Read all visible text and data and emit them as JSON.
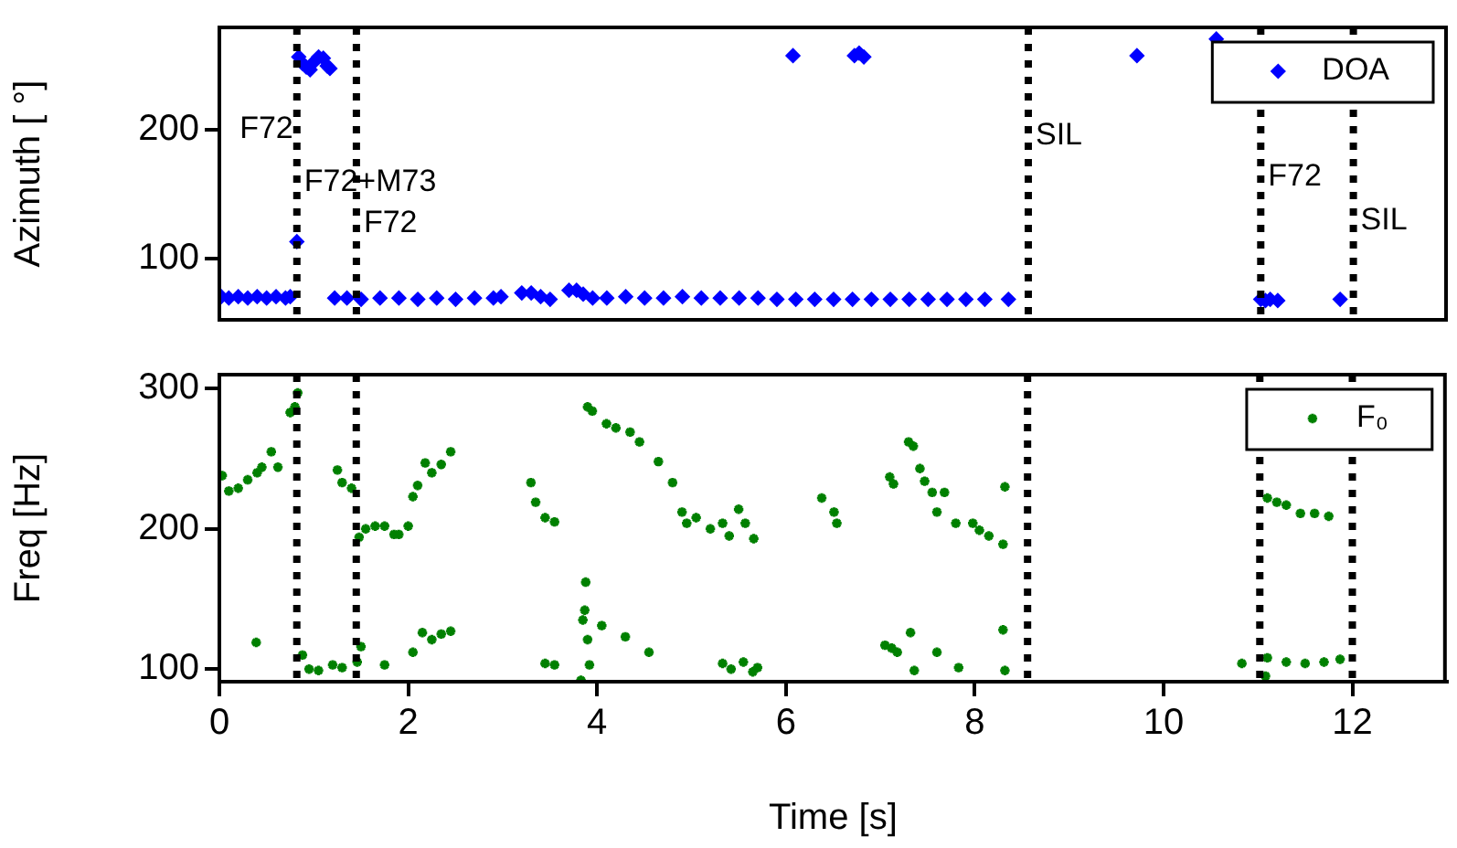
{
  "chart_data": [
    {
      "type": "scatter",
      "ylabel": "Azimuth [ °]",
      "tick_labels": "y",
      "legend": "top right",
      "marker": "diamond",
      "xlim": [
        0,
        13
      ],
      "ylim": [
        52,
        280
      ],
      "yticks": [
        100,
        200
      ],
      "x": [
        0.02,
        0.1,
        0.2,
        0.3,
        0.4,
        0.5,
        0.6,
        0.7,
        0.75,
        0.82,
        0.84,
        0.88,
        0.92,
        0.96,
        1.0,
        1.05,
        1.1,
        1.14,
        1.17,
        1.22,
        1.35,
        1.5,
        1.7,
        1.9,
        2.1,
        2.3,
        2.5,
        2.7,
        2.9,
        2.98,
        3.2,
        3.3,
        3.4,
        3.5,
        3.7,
        3.78,
        3.85,
        3.95,
        4.1,
        4.3,
        4.5,
        4.7,
        4.9,
        5.1,
        5.3,
        5.5,
        5.7,
        5.9,
        6.1,
        6.3,
        6.5,
        6.7,
        6.9,
        7.1,
        7.3,
        7.5,
        7.7,
        7.9,
        8.1,
        8.35,
        6.07,
        6.72,
        6.77,
        6.82,
        9.71,
        10.55,
        11.02,
        11.07,
        11.12,
        11.2,
        11.86
      ],
      "series": [
        {
          "name": "DOA",
          "color": "#0000ff",
          "values": [
            70,
            69,
            70,
            69,
            70,
            69,
            70,
            69,
            70,
            113,
            257,
            252,
            249,
            247,
            253,
            257,
            256,
            250,
            248,
            69,
            69,
            68,
            69,
            69,
            68,
            69,
            68,
            69,
            69,
            70,
            73,
            73,
            70,
            68,
            75,
            75,
            72,
            69,
            69,
            70,
            69,
            69,
            70,
            69,
            69,
            69,
            69,
            68,
            68,
            68,
            68,
            68,
            68,
            68,
            68,
            68,
            68,
            68,
            68,
            68,
            258,
            258,
            260,
            257,
            258,
            271,
            68,
            67,
            68,
            67,
            68
          ]
        }
      ],
      "ref_lines": [
        {
          "axis": "x",
          "value": 0.82,
          "line_style": "dotted",
          "label": "F72+M73"
        },
        {
          "axis": "x",
          "value": 1.45,
          "line_style": "dotted",
          "label": "F72"
        },
        {
          "axis": "x",
          "value": 8.56,
          "line_style": "dotted",
          "label": "SIL"
        },
        {
          "axis": "x",
          "value": 11.02,
          "line_style": "dotted",
          "label": "F72"
        },
        {
          "axis": "x",
          "value": 12.0,
          "line_style": "dotted",
          "label": "SIL"
        }
      ],
      "annotations": [
        "F72"
      ]
    },
    {
      "type": "scatter",
      "xlabel": "Time [s]",
      "ylabel": "Freq [Hz]",
      "legend": "top right",
      "marker": "cross",
      "xlim": [
        0,
        13
      ],
      "xticks": [
        0,
        2,
        4,
        6,
        8,
        10,
        12
      ],
      "ylim": [
        91,
        310
      ],
      "yticks": [
        100,
        200,
        300
      ],
      "x": [
        0.03,
        0.1,
        0.2,
        0.3,
        0.4,
        0.45,
        0.55,
        0.62,
        0.75,
        0.8,
        0.83,
        0.39,
        0.88,
        0.95,
        1.05,
        1.2,
        1.3,
        1.46,
        1.5,
        1.75,
        1.25,
        1.3,
        1.4,
        1.48,
        1.55,
        1.65,
        1.75,
        1.85,
        1.9,
        2.0,
        2.05,
        2.1,
        2.18,
        2.25,
        2.35,
        2.45,
        2.05,
        2.15,
        2.25,
        2.35,
        2.45,
        3.3,
        3.35,
        3.45,
        3.55,
        3.45,
        3.55,
        3.83,
        3.85,
        3.87,
        3.88,
        3.9,
        3.92,
        4.05,
        4.3,
        4.55,
        3.9,
        3.95,
        4.1,
        4.2,
        4.35,
        4.45,
        4.65,
        4.8,
        4.9,
        4.95,
        5.05,
        5.2,
        5.33,
        5.4,
        5.5,
        5.57,
        5.66,
        5.33,
        5.42,
        5.55,
        5.65,
        5.7,
        6.38,
        6.51,
        6.54,
        7.1,
        7.14,
        7.3,
        7.35,
        7.42,
        7.47,
        7.55,
        7.6,
        7.68,
        7.8,
        7.98,
        8.05,
        8.15,
        8.3,
        8.32,
        7.05,
        7.12,
        7.18,
        7.32,
        7.36,
        7.6,
        7.83,
        8.3,
        8.32,
        10.83,
        11.1,
        11.2,
        11.3,
        11.45,
        11.6,
        11.75,
        11.08,
        11.1,
        11.3,
        11.5,
        11.7,
        11.87
      ],
      "series": [
        {
          "name": "F₀",
          "color": "#008000",
          "values": [
            238,
            227,
            229,
            235,
            240,
            244,
            255,
            244,
            283,
            287,
            297,
            119,
            110,
            100,
            99,
            103,
            101,
            105,
            116,
            103,
            242,
            233,
            229,
            194,
            200,
            202,
            202,
            196,
            196,
            202,
            223,
            231,
            247,
            240,
            246,
            255,
            112,
            126,
            121,
            125,
            127,
            233,
            219,
            208,
            205,
            104,
            103,
            92,
            135,
            142,
            162,
            121,
            103,
            131,
            123,
            112,
            287,
            284,
            275,
            272,
            269,
            262,
            248,
            233,
            212,
            204,
            208,
            200,
            204,
            195,
            214,
            204,
            193,
            104,
            100,
            105,
            98,
            101,
            222,
            212,
            204,
            237,
            232,
            262,
            259,
            243,
            234,
            226,
            212,
            226,
            204,
            204,
            199,
            195,
            189,
            230,
            117,
            115,
            112,
            126,
            99,
            112,
            101,
            128,
            99,
            104,
            222,
            219,
            217,
            211,
            211,
            209,
            95,
            108,
            105,
            104,
            105,
            107
          ]
        }
      ],
      "ref_lines": [
        {
          "axis": "x",
          "value": 0.82,
          "line_style": "dotted"
        },
        {
          "axis": "x",
          "value": 1.45,
          "line_style": "dotted"
        },
        {
          "axis": "x",
          "value": 8.56,
          "line_style": "dotted"
        },
        {
          "axis": "x",
          "value": 11.02,
          "line_style": "dotted"
        },
        {
          "axis": "x",
          "value": 12.0,
          "line_style": "dotted"
        }
      ]
    }
  ]
}
